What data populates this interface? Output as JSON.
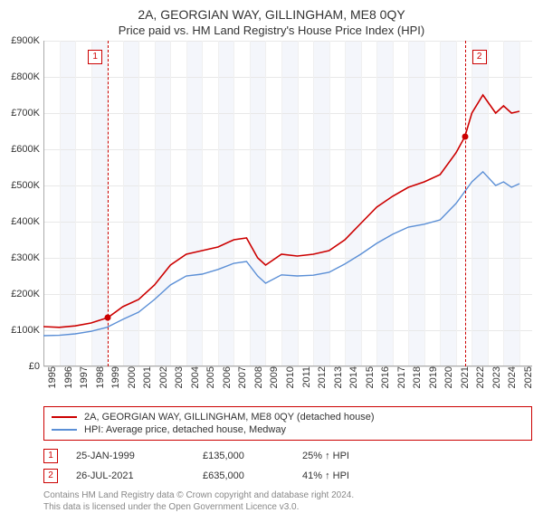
{
  "title": "2A, GEORGIAN WAY, GILLINGHAM, ME8 0QY",
  "subtitle": "Price paid vs. HM Land Registry's House Price Index (HPI)",
  "chart": {
    "type": "line",
    "background_color": "#ffffff",
    "shade_color": "#f4f6fb",
    "grid_color": "#e8e8e8",
    "axis_color": "#aaaaaa",
    "ylim": [
      0,
      900000
    ],
    "ytick_step": 100000,
    "y_labels": [
      "£0",
      "£100K",
      "£200K",
      "£300K",
      "£400K",
      "£500K",
      "£600K",
      "£700K",
      "£800K",
      "£900K"
    ],
    "x_years": [
      1995,
      1996,
      1997,
      1998,
      1999,
      2000,
      2001,
      2002,
      2003,
      2004,
      2005,
      2006,
      2007,
      2008,
      2009,
      2010,
      2011,
      2012,
      2013,
      2014,
      2015,
      2016,
      2017,
      2018,
      2019,
      2020,
      2021,
      2022,
      2023,
      2024,
      2025
    ],
    "x_min": 1995,
    "x_max": 2025.8,
    "series": [
      {
        "name": "price_paid",
        "label": "2A, GEORGIAN WAY, GILLINGHAM, ME8 0QY (detached house)",
        "color": "#cc0000",
        "stroke_width": 1.6,
        "points": [
          [
            1995.0,
            110000
          ],
          [
            1996.0,
            108000
          ],
          [
            1997.0,
            112000
          ],
          [
            1998.0,
            120000
          ],
          [
            1999.06,
            135000
          ],
          [
            2000.0,
            165000
          ],
          [
            2001.0,
            185000
          ],
          [
            2002.0,
            225000
          ],
          [
            2003.0,
            280000
          ],
          [
            2004.0,
            310000
          ],
          [
            2005.0,
            320000
          ],
          [
            2006.0,
            330000
          ],
          [
            2007.0,
            350000
          ],
          [
            2007.8,
            355000
          ],
          [
            2008.5,
            300000
          ],
          [
            2009.0,
            280000
          ],
          [
            2010.0,
            310000
          ],
          [
            2011.0,
            305000
          ],
          [
            2012.0,
            310000
          ],
          [
            2013.0,
            320000
          ],
          [
            2014.0,
            350000
          ],
          [
            2015.0,
            395000
          ],
          [
            2016.0,
            440000
          ],
          [
            2017.0,
            470000
          ],
          [
            2018.0,
            495000
          ],
          [
            2019.0,
            510000
          ],
          [
            2020.0,
            530000
          ],
          [
            2021.0,
            590000
          ],
          [
            2021.56,
            635000
          ],
          [
            2022.0,
            700000
          ],
          [
            2022.7,
            750000
          ],
          [
            2023.5,
            700000
          ],
          [
            2024.0,
            720000
          ],
          [
            2024.5,
            700000
          ],
          [
            2025.0,
            705000
          ]
        ]
      },
      {
        "name": "hpi",
        "label": "HPI: Average price, detached house, Medway",
        "color": "#5b8fd6",
        "stroke_width": 1.4,
        "points": [
          [
            1995.0,
            85000
          ],
          [
            1996.0,
            86000
          ],
          [
            1997.0,
            90000
          ],
          [
            1998.0,
            97000
          ],
          [
            1999.0,
            108000
          ],
          [
            2000.0,
            130000
          ],
          [
            2001.0,
            150000
          ],
          [
            2002.0,
            185000
          ],
          [
            2003.0,
            225000
          ],
          [
            2004.0,
            250000
          ],
          [
            2005.0,
            255000
          ],
          [
            2006.0,
            268000
          ],
          [
            2007.0,
            285000
          ],
          [
            2007.8,
            290000
          ],
          [
            2008.5,
            250000
          ],
          [
            2009.0,
            230000
          ],
          [
            2010.0,
            253000
          ],
          [
            2011.0,
            250000
          ],
          [
            2012.0,
            252000
          ],
          [
            2013.0,
            260000
          ],
          [
            2014.0,
            283000
          ],
          [
            2015.0,
            310000
          ],
          [
            2016.0,
            340000
          ],
          [
            2017.0,
            365000
          ],
          [
            2018.0,
            385000
          ],
          [
            2019.0,
            393000
          ],
          [
            2020.0,
            405000
          ],
          [
            2021.0,
            450000
          ],
          [
            2022.0,
            510000
          ],
          [
            2022.7,
            538000
          ],
          [
            2023.5,
            500000
          ],
          [
            2024.0,
            510000
          ],
          [
            2024.5,
            495000
          ],
          [
            2025.0,
            505000
          ]
        ]
      }
    ],
    "markers": [
      {
        "n": "1",
        "year": 1999.06,
        "value": 135000,
        "color": "#cc0000"
      },
      {
        "n": "2",
        "year": 2021.56,
        "value": 635000,
        "color": "#cc0000"
      }
    ]
  },
  "legend": {
    "border_color": "#cc0000",
    "items": [
      {
        "color": "#cc0000",
        "label": "2A, GEORGIAN WAY, GILLINGHAM, ME8 0QY (detached house)"
      },
      {
        "color": "#5b8fd6",
        "label": "HPI: Average price, detached house, Medway"
      }
    ]
  },
  "transactions": [
    {
      "n": "1",
      "color": "#cc0000",
      "date": "25-JAN-1999",
      "price": "£135,000",
      "pct": "25% ↑ HPI"
    },
    {
      "n": "2",
      "color": "#cc0000",
      "date": "26-JUL-2021",
      "price": "£635,000",
      "pct": "41% ↑ HPI"
    }
  ],
  "footer_line1": "Contains HM Land Registry data © Crown copyright and database right 2024.",
  "footer_line2": "This data is licensed under the Open Government Licence v3.0."
}
